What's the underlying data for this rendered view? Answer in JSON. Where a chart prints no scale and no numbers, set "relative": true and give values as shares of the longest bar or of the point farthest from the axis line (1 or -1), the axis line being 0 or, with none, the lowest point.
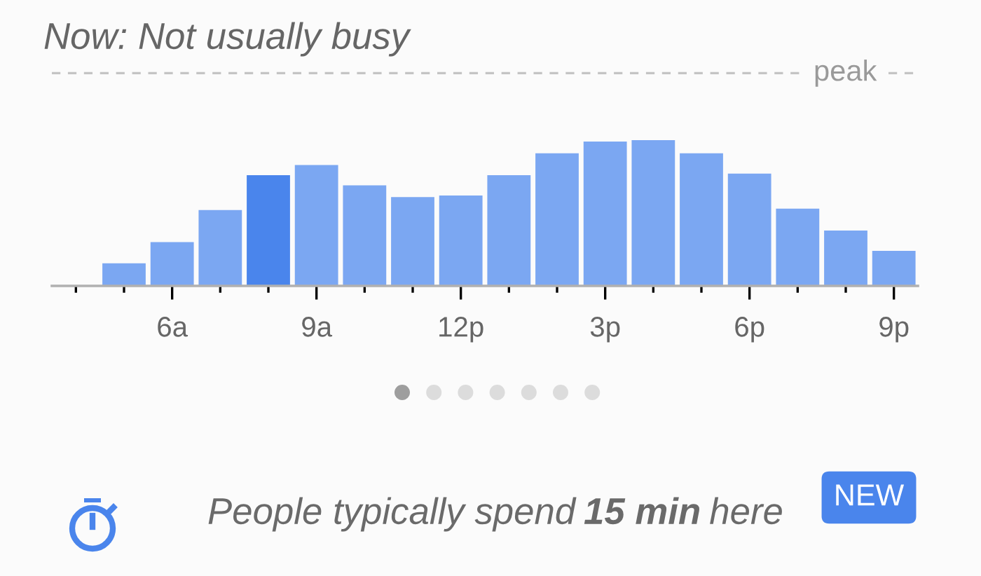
{
  "chart_data": {
    "type": "bar",
    "relative": true,
    "title": "Now: Not usually busy",
    "categories": [
      null,
      null,
      "6a",
      null,
      null,
      "9a",
      null,
      null,
      "12p",
      null,
      null,
      "3p",
      null,
      null,
      "6p",
      null,
      null,
      "9p"
    ],
    "values": [
      null,
      0.155,
      0.3,
      0.52,
      0.76,
      0.83,
      0.69,
      0.61,
      0.62,
      0.76,
      0.91,
      0.99,
      1,
      0.91,
      0.77,
      0.53,
      0.38,
      0.24
    ],
    "colors": [
      "#7ba7f2",
      "#7ba7f2",
      "#7ba7f2",
      "#7ba7f2",
      "#4a85ec",
      "#7ba7f2",
      "#7ba7f2",
      "#7ba7f2",
      "#7ba7f2",
      "#7ba7f2",
      "#7ba7f2",
      "#7ba7f2",
      "#7ba7f2",
      "#7ba7f2",
      "#7ba7f2",
      "#7ba7f2",
      "#7ba7f2",
      "#7ba7f2"
    ],
    "ref_lines": [
      {
        "axis": "y",
        "value": 1.46,
        "label": "peak",
        "color": "#c4c4c4",
        "line_style": "dashed"
      }
    ],
    "annotations": [
      "People typically spend",
      "15 min",
      "here",
      "NEW"
    ]
  }
}
